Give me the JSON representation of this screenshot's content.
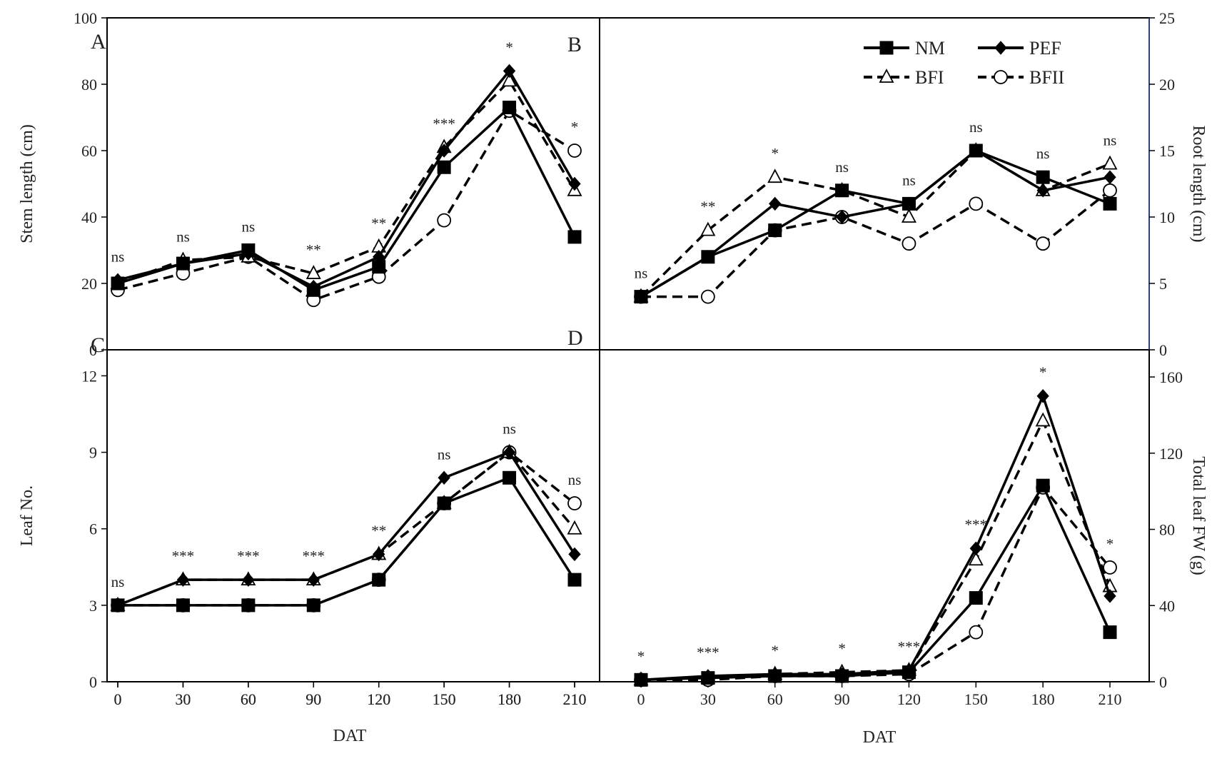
{
  "figure": {
    "legend": {
      "entries": [
        {
          "name": "NM",
          "marker": "square",
          "line": "solid"
        },
        {
          "name": "PEF",
          "marker": "diamond",
          "line": "solid"
        },
        {
          "name": "BFI",
          "marker": "triangle-open",
          "line": "dashed"
        },
        {
          "name": "BFII",
          "marker": "circle-open",
          "line": "dashed"
        }
      ],
      "placement": "top-right of panel B"
    },
    "x_label": "DAT"
  },
  "chart_data": [
    {
      "panel": "A",
      "type": "line",
      "ylabel": "Stem length (cm)",
      "x": [
        0,
        30,
        60,
        90,
        120,
        150,
        180,
        210
      ],
      "xticks": [
        "0",
        "30",
        "60",
        "90",
        "120",
        "150",
        "180",
        "210"
      ],
      "ylim": [
        0,
        100
      ],
      "yticks": [
        "0",
        "20",
        "40",
        "60",
        "80",
        "100"
      ],
      "series": [
        {
          "name": "NM",
          "values": [
            20,
            26,
            30,
            18,
            25,
            55,
            73,
            34
          ]
        },
        {
          "name": "PEF",
          "values": [
            21,
            26,
            29,
            19,
            28,
            60,
            84,
            50
          ]
        },
        {
          "name": "BFI",
          "values": [
            20,
            27,
            28,
            23,
            31,
            61,
            81,
            48
          ]
        },
        {
          "name": "BFII",
          "values": [
            18,
            23,
            28,
            15,
            22,
            39,
            72,
            60
          ]
        }
      ],
      "significance": [
        "ns",
        "ns",
        "ns",
        "**",
        "**",
        "***",
        "*",
        "*"
      ]
    },
    {
      "panel": "B",
      "type": "line",
      "ylabel": "Root length (cm)",
      "x": [
        0,
        30,
        60,
        90,
        120,
        150,
        180,
        210
      ],
      "ylim": [
        0,
        25
      ],
      "yticks": [
        "0",
        "5",
        "10",
        "15",
        "20",
        "25"
      ],
      "series": [
        {
          "name": "NM",
          "values": [
            4,
            7,
            9,
            12,
            11,
            15,
            13,
            11
          ]
        },
        {
          "name": "PEF",
          "values": [
            4,
            7,
            11,
            10,
            11,
            15,
            12,
            13
          ]
        },
        {
          "name": "BFI",
          "values": [
            4,
            9,
            13,
            12,
            10,
            15,
            12,
            14
          ]
        },
        {
          "name": "BFII",
          "values": [
            4,
            4,
            9,
            10,
            8,
            11,
            8,
            12
          ]
        }
      ],
      "significance": [
        "ns",
        "**",
        "*",
        "ns",
        "ns",
        "ns",
        "ns",
        "ns"
      ]
    },
    {
      "panel": "C",
      "type": "line",
      "ylabel": "Leaf No.",
      "x": [
        0,
        30,
        60,
        90,
        120,
        150,
        180,
        210
      ],
      "xticks": [
        "0",
        "30",
        "60",
        "90",
        "120",
        "150",
        "180",
        "210"
      ],
      "ylim": [
        0,
        14
      ],
      "yticks": [
        "0",
        "3",
        "6",
        "9",
        "12"
      ],
      "series": [
        {
          "name": "NM",
          "values": [
            3,
            3,
            3,
            3,
            4,
            7,
            8,
            4
          ]
        },
        {
          "name": "PEF",
          "values": [
            3,
            4,
            4,
            4,
            5,
            8,
            9,
            5
          ]
        },
        {
          "name": "BFI",
          "values": [
            3,
            4,
            4,
            4,
            5,
            7,
            9,
            6
          ]
        },
        {
          "name": "BFII",
          "values": [
            3,
            3,
            3,
            3,
            4,
            7,
            9,
            7
          ]
        }
      ],
      "significance": [
        "ns",
        "***",
        "***",
        "***",
        "**",
        "ns",
        "ns",
        "ns"
      ]
    },
    {
      "panel": "D",
      "type": "line",
      "ylabel": "Total leaf FW (g)",
      "x": [
        0,
        30,
        60,
        90,
        120,
        150,
        180,
        210
      ],
      "xticks": [
        "0",
        "30",
        "60",
        "90",
        "120",
        "150",
        "180",
        "210"
      ],
      "ylim": [
        0,
        190
      ],
      "yticks": [
        "0",
        "40",
        "80",
        "120",
        "160"
      ],
      "series": [
        {
          "name": "NM",
          "values": [
            1,
            2,
            3,
            3,
            5,
            44,
            103,
            26
          ]
        },
        {
          "name": "PEF",
          "values": [
            1,
            3,
            4,
            4,
            6,
            70,
            150,
            45
          ]
        },
        {
          "name": "BFI",
          "values": [
            1,
            2,
            4,
            5,
            6,
            64,
            137,
            50
          ]
        },
        {
          "name": "BFII",
          "values": [
            1,
            1,
            3,
            3,
            4,
            26,
            102,
            60
          ]
        }
      ],
      "significance": [
        "*",
        "***",
        "*",
        "*",
        "***",
        "***",
        "*",
        "*"
      ]
    }
  ]
}
